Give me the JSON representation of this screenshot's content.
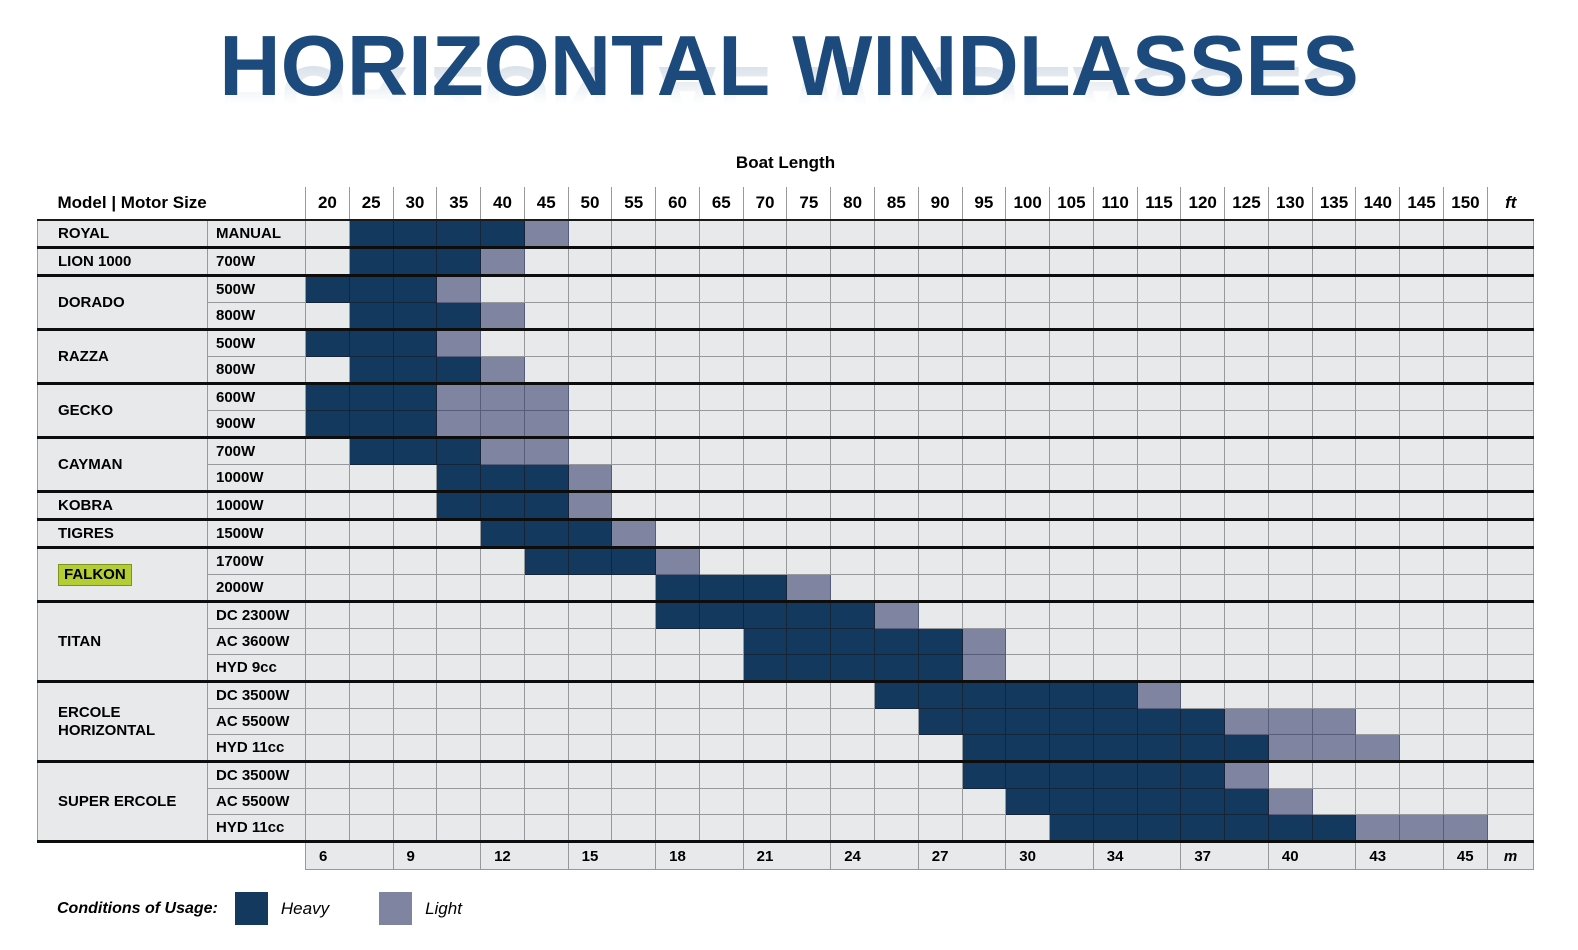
{
  "title": {
    "text": "HORIZONTAL WINDLASSES"
  },
  "chart_data": {
    "type": "heatmap",
    "title": "HORIZONTAL WINDLASSES",
    "top_axis_label": "Boat Length",
    "corner_header": "Model | Motor Size",
    "columns_ft": [
      20,
      25,
      30,
      35,
      40,
      45,
      50,
      55,
      60,
      65,
      70,
      75,
      80,
      85,
      90,
      95,
      100,
      105,
      110,
      115,
      120,
      125,
      130,
      135,
      140,
      145,
      150
    ],
    "ft_unit": "ft",
    "m_unit": "m",
    "meter_labels": [
      "6",
      "9",
      "12",
      "15",
      "18",
      "21",
      "24",
      "27",
      "30",
      "34",
      "37",
      "40",
      "43",
      "45"
    ],
    "legend": {
      "caption": "Conditions of Usage:",
      "items": [
        {
          "label": "Heavy",
          "color": "#14395f"
        },
        {
          "label": "Light",
          "color": "#7f85a1"
        }
      ]
    },
    "colors": {
      "heavy": "#14395f",
      "light": "#7f85a1",
      "row_bg": "#e8e9eb",
      "model_highlight": "#b5cd35",
      "title": "#1c4a7c"
    },
    "groups": [
      {
        "model": "ROYAL",
        "highlight": false,
        "motors": [
          {
            "label": "MANUAL",
            "heavy": [
              25,
              40
            ],
            "light": [
              45,
              45
            ]
          }
        ]
      },
      {
        "model": "LION 1000",
        "highlight": false,
        "motors": [
          {
            "label": "700W",
            "heavy": [
              25,
              35
            ],
            "light": [
              40,
              40
            ]
          }
        ]
      },
      {
        "model": "DORADO",
        "highlight": false,
        "motors": [
          {
            "label": "500W",
            "heavy": [
              20,
              30
            ],
            "light": [
              35,
              35
            ]
          },
          {
            "label": "800W",
            "heavy": [
              25,
              35
            ],
            "light": [
              40,
              40
            ]
          }
        ]
      },
      {
        "model": "RAZZA",
        "highlight": false,
        "motors": [
          {
            "label": "500W",
            "heavy": [
              20,
              30
            ],
            "light": [
              35,
              35
            ]
          },
          {
            "label": "800W",
            "heavy": [
              25,
              35
            ],
            "light": [
              40,
              40
            ]
          }
        ]
      },
      {
        "model": "GECKO",
        "highlight": false,
        "motors": [
          {
            "label": "600W",
            "heavy": [
              20,
              30
            ],
            "light": [
              35,
              45
            ]
          },
          {
            "label": "900W",
            "heavy": [
              20,
              30
            ],
            "light": [
              35,
              45
            ]
          }
        ]
      },
      {
        "model": "CAYMAN",
        "highlight": false,
        "motors": [
          {
            "label": "700W",
            "heavy": [
              25,
              35
            ],
            "light": [
              40,
              45
            ]
          },
          {
            "label": "1000W",
            "heavy": [
              35,
              45
            ],
            "light": [
              50,
              50
            ]
          }
        ]
      },
      {
        "model": "KOBRA",
        "highlight": false,
        "motors": [
          {
            "label": "1000W",
            "heavy": [
              35,
              45
            ],
            "light": [
              50,
              50
            ]
          }
        ]
      },
      {
        "model": "TIGRES",
        "highlight": false,
        "motors": [
          {
            "label": "1500W",
            "heavy": [
              40,
              50
            ],
            "light": [
              55,
              55
            ]
          }
        ]
      },
      {
        "model": "FALKON",
        "highlight": true,
        "motors": [
          {
            "label": "1700W",
            "heavy": [
              45,
              55
            ],
            "light": [
              60,
              60
            ]
          },
          {
            "label": "2000W",
            "heavy": [
              60,
              70
            ],
            "light": [
              75,
              75
            ]
          }
        ]
      },
      {
        "model": "TITAN",
        "highlight": false,
        "motors": [
          {
            "label": "DC 2300W",
            "heavy": [
              60,
              80
            ],
            "light": [
              85,
              85
            ]
          },
          {
            "label": "AC 3600W",
            "heavy": [
              70,
              90
            ],
            "light": [
              95,
              95
            ]
          },
          {
            "label": "HYD 9cc",
            "heavy": [
              70,
              90
            ],
            "light": [
              95,
              95
            ]
          }
        ]
      },
      {
        "model": "ERCOLE HORIZONTAL",
        "highlight": false,
        "motors": [
          {
            "label": "DC 3500W",
            "heavy": [
              85,
              110
            ],
            "light": [
              115,
              115
            ]
          },
          {
            "label": "AC 5500W",
            "heavy": [
              90,
              120
            ],
            "light": [
              125,
              135
            ]
          },
          {
            "label": "HYD 11cc",
            "heavy": [
              95,
              125
            ],
            "light": [
              130,
              140
            ]
          }
        ]
      },
      {
        "model": "SUPER ERCOLE",
        "highlight": false,
        "motors": [
          {
            "label": "DC 3500W",
            "heavy": [
              95,
              120
            ],
            "light": [
              125,
              125
            ]
          },
          {
            "label": "AC 5500W",
            "heavy": [
              100,
              125
            ],
            "light": [
              130,
              130
            ]
          },
          {
            "label": "HYD 11cc",
            "heavy": [
              105,
              135
            ],
            "light": [
              140,
              150
            ]
          }
        ]
      }
    ]
  }
}
